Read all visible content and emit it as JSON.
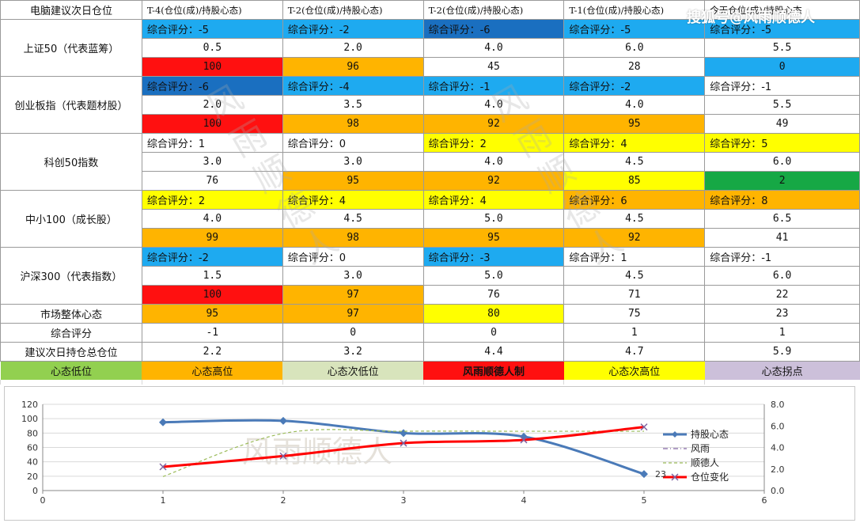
{
  "watermark": "搜狐号@风雨顺德人",
  "watermark_chars": [
    "风",
    "雨",
    "顺",
    "德",
    "人"
  ],
  "header": {
    "corner": "电脑建议次日仓位",
    "columns": [
      "T-4(仓位(成)/持股心态)",
      "T-2(仓位(成)/持股心态)",
      "T-2(仓位(成)/持股心态)",
      "T-1(仓位(成)/持股心态)",
      "今天仓位(成)/持股心态"
    ]
  },
  "indices": [
    {
      "label": "上证50（代表蓝筹）",
      "scores": [
        "综合评分：-5",
        "综合评分：-2",
        "综合评分：-6",
        "综合评分：-5",
        "综合评分：-5"
      ],
      "score_colors": [
        "#1eaaf0",
        "#1eaaf0",
        "#1a6fc0",
        "#1eaaf0",
        "#1eaaf0"
      ],
      "positions": [
        "0.5",
        "2.0",
        "4.0",
        "6.0",
        "5.5"
      ],
      "moods": [
        "100",
        "96",
        "45",
        "28",
        "0"
      ],
      "mood_colors": [
        "#ff1010",
        "#ffb400",
        "#ffffff",
        "#ffffff",
        "#1eaaf0"
      ]
    },
    {
      "label": "创业板指（代表题材股）",
      "scores": [
        "综合评分：-6",
        "综合评分：-4",
        "综合评分：-1",
        "综合评分：-2",
        "综合评分：-1"
      ],
      "score_colors": [
        "#1a6fc0",
        "#1eaaf0",
        "#1eaaf0",
        "#1eaaf0",
        "#ffffff"
      ],
      "positions": [
        "2.0",
        "3.5",
        "4.0",
        "4.0",
        "5.5"
      ],
      "moods": [
        "100",
        "98",
        "92",
        "95",
        "49"
      ],
      "mood_colors": [
        "#ff1010",
        "#ffb400",
        "#ffb400",
        "#ffb400",
        "#ffffff"
      ]
    },
    {
      "label": "科创50指数",
      "scores": [
        "综合评分：1",
        "综合评分：0",
        "综合评分：2",
        "综合评分：4",
        "综合评分：5"
      ],
      "score_colors": [
        "#ffffff",
        "#ffffff",
        "#ffff00",
        "#ffff00",
        "#ffff00"
      ],
      "positions": [
        "3.0",
        "3.0",
        "4.0",
        "4.5",
        "6.0"
      ],
      "moods": [
        "76",
        "95",
        "92",
        "85",
        "2"
      ],
      "mood_colors": [
        "#ffffff",
        "#ffb400",
        "#ffb400",
        "#ffff00",
        "#16a845"
      ]
    },
    {
      "label": "中小100（成长股）",
      "scores": [
        "综合评分：2",
        "综合评分：4",
        "综合评分：4",
        "综合评分：6",
        "综合评分：8"
      ],
      "score_colors": [
        "#ffff00",
        "#ffff00",
        "#ffff00",
        "#ffb400",
        "#ffb400"
      ],
      "positions": [
        "4.0",
        "4.5",
        "5.0",
        "4.5",
        "6.5"
      ],
      "moods": [
        "99",
        "98",
        "95",
        "92",
        "41"
      ],
      "mood_colors": [
        "#ffb400",
        "#ffb400",
        "#ffb400",
        "#ffb400",
        "#ffffff"
      ]
    },
    {
      "label": "沪深300（代表指数）",
      "scores": [
        "综合评分：-2",
        "综合评分：0",
        "综合评分：-3",
        "综合评分：1",
        "综合评分：-1"
      ],
      "score_colors": [
        "#1eaaf0",
        "#ffffff",
        "#1eaaf0",
        "#ffffff",
        "#ffffff"
      ],
      "positions": [
        "1.5",
        "3.0",
        "5.0",
        "4.5",
        "6.0"
      ],
      "moods": [
        "100",
        "97",
        "76",
        "71",
        "22"
      ],
      "mood_colors": [
        "#ff1010",
        "#ffb400",
        "#ffffff",
        "#ffffff",
        "#ffffff"
      ]
    }
  ],
  "market": {
    "label": "市场整体心态",
    "values": [
      "95",
      "97",
      "80",
      "75",
      "23"
    ],
    "colors": [
      "#ffb400",
      "#ffb400",
      "#ffff00",
      "#ffffff",
      "#ffffff"
    ]
  },
  "overall": {
    "label": "综合评分",
    "values": [
      "-1",
      "0",
      "0",
      "1",
      "1"
    ]
  },
  "suggest": {
    "label": "建议次日持仓总仓位",
    "values": [
      "2.2",
      "3.2",
      "4.4",
      "4.7",
      "5.9"
    ]
  },
  "legend_row": [
    {
      "text": "心态低位",
      "color": "#92d050",
      "bold": false
    },
    {
      "text": "心态高位",
      "color": "#ffb400",
      "bold": false
    },
    {
      "text": "心态次低位",
      "color": "#d8e4bc",
      "bold": false
    },
    {
      "text": "风雨顺德人制",
      "color": "#ff1010",
      "bold": true
    },
    {
      "text": "心态次高位",
      "color": "#ffff00",
      "bold": false
    },
    {
      "text": "心态拐点",
      "color": "#ccc0da",
      "bold": false
    }
  ],
  "chart_data": {
    "type": "line",
    "watermark": "风雨顺德人",
    "x": [
      1,
      2,
      3,
      4,
      5
    ],
    "xlim": [
      0,
      6
    ],
    "xticks": [
      "0",
      "1",
      "2",
      "3",
      "4",
      "5",
      "6"
    ],
    "ylim_left": [
      0,
      120
    ],
    "yticks_left": [
      "0",
      "20",
      "40",
      "60",
      "80",
      "100",
      "120"
    ],
    "ylim_right": [
      0,
      8
    ],
    "yticks_right": [
      "0.0",
      "2.0",
      "4.0",
      "6.0",
      "8.0"
    ],
    "grid": true,
    "legend_position": "right",
    "data_label": "23",
    "series": [
      {
        "name": "持股心态",
        "axis": "left",
        "values": [
          95,
          97,
          80,
          75,
          23
        ],
        "color": "#4a7ab8"
      },
      {
        "name": "风雨",
        "axis": "right",
        "values": [
          2.2,
          3.2,
          4.4,
          4.7,
          5.9
        ],
        "color": "#8064a2"
      },
      {
        "name": "顺德人",
        "axis": "right",
        "values": [
          1.3,
          5.3,
          5.5,
          5.5,
          5.5
        ],
        "color": "#9bbb59"
      },
      {
        "name": "仓位变化",
        "axis": "right",
        "values": [
          2.2,
          3.2,
          4.4,
          4.7,
          5.9
        ],
        "color": "#ff0000"
      }
    ]
  }
}
